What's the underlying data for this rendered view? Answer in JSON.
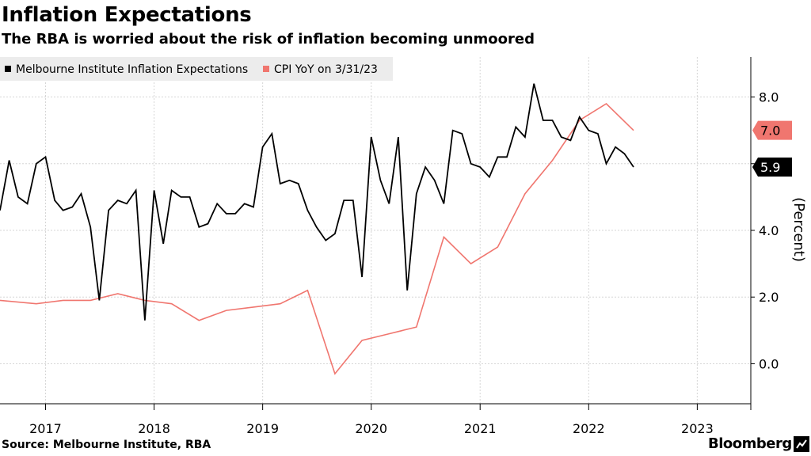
{
  "header": {
    "title": "Inflation Expectations",
    "subtitle": "The RBA is worried about the risk of inflation becoming unmoored"
  },
  "footer": {
    "source": "Source: Melbourne Institute, RBA",
    "brand": "Bloomberg"
  },
  "chart_data": {
    "type": "line",
    "ylabel": "(Percent)",
    "ylim": [
      -1.2,
      9.2
    ],
    "xlim": [
      "2016-08-01",
      "2023-06-30"
    ],
    "yticks": [
      0.0,
      2.0,
      4.0,
      6.0,
      8.0
    ],
    "ytick_labels": [
      "0.0",
      "2.0",
      "4.0",
      "",
      "8.0"
    ],
    "xticks": [
      "2017-01-01",
      "2018-01-01",
      "2019-01-01",
      "2020-01-01",
      "2021-01-01",
      "2022-01-01",
      "2023-01-01"
    ],
    "xtick_labels": [
      "2017",
      "2018",
      "2019",
      "2020",
      "2021",
      "2022",
      "2023"
    ],
    "grid": true,
    "legend": "top-left",
    "series": [
      {
        "name": "Melbourne Institute Inflation Expectations",
        "color": "#000000",
        "end_label": "5.9",
        "points": [
          [
            "2016-08",
            4.6
          ],
          [
            "2016-09",
            6.1
          ],
          [
            "2016-10",
            5.0
          ],
          [
            "2016-11",
            4.8
          ],
          [
            "2016-12",
            6.0
          ],
          [
            "2017-01",
            6.2
          ],
          [
            "2017-02",
            4.9
          ],
          [
            "2017-03",
            4.6
          ],
          [
            "2017-04",
            4.7
          ],
          [
            "2017-05",
            5.1
          ],
          [
            "2017-06",
            4.1
          ],
          [
            "2017-07",
            1.9
          ],
          [
            "2017-08",
            4.6
          ],
          [
            "2017-09",
            4.9
          ],
          [
            "2017-10",
            4.8
          ],
          [
            "2017-11",
            5.2
          ],
          [
            "2017-12",
            1.3
          ],
          [
            "2018-01",
            5.2
          ],
          [
            "2018-02",
            3.6
          ],
          [
            "2018-03",
            5.2
          ],
          [
            "2018-04",
            5.0
          ],
          [
            "2018-05",
            5.0
          ],
          [
            "2018-06",
            4.1
          ],
          [
            "2018-07",
            4.2
          ],
          [
            "2018-08",
            4.8
          ],
          [
            "2018-09",
            4.5
          ],
          [
            "2018-10",
            4.5
          ],
          [
            "2018-11",
            4.8
          ],
          [
            "2018-12",
            4.7
          ],
          [
            "2019-01",
            6.5
          ],
          [
            "2019-02",
            6.9
          ],
          [
            "2019-03",
            5.4
          ],
          [
            "2019-04",
            5.5
          ],
          [
            "2019-05",
            5.4
          ],
          [
            "2019-06",
            4.6
          ],
          [
            "2019-07",
            4.1
          ],
          [
            "2019-08",
            3.7
          ],
          [
            "2019-09",
            3.9
          ],
          [
            "2019-10",
            4.9
          ],
          [
            "2019-11",
            4.9
          ],
          [
            "2019-12",
            2.6
          ],
          [
            "2020-01",
            6.8
          ],
          [
            "2020-02",
            5.5
          ],
          [
            "2020-03",
            4.8
          ],
          [
            "2020-04",
            6.8
          ],
          [
            "2020-05",
            2.2
          ],
          [
            "2020-06",
            5.1
          ],
          [
            "2020-07",
            5.9
          ],
          [
            "2020-08",
            5.5
          ],
          [
            "2020-09",
            4.8
          ],
          [
            "2020-10",
            7.0
          ],
          [
            "2020-11",
            6.9
          ],
          [
            "2020-12",
            6.0
          ],
          [
            "2021-01",
            5.9
          ],
          [
            "2021-02",
            5.6
          ],
          [
            "2021-03",
            6.2
          ],
          [
            "2021-04",
            6.2
          ],
          [
            "2021-05",
            7.1
          ],
          [
            "2021-06",
            6.8
          ],
          [
            "2021-07",
            8.4
          ],
          [
            "2021-08",
            7.3
          ],
          [
            "2021-09",
            7.3
          ],
          [
            "2021-10",
            6.8
          ],
          [
            "2021-11",
            6.7
          ],
          [
            "2021-12",
            7.4
          ],
          [
            "2022-01",
            7.0
          ],
          [
            "2022-02",
            6.9
          ],
          [
            "2022-03",
            6.0
          ],
          [
            "2022-04",
            6.5
          ],
          [
            "2022-05",
            6.3
          ],
          [
            "2022-06",
            5.9
          ]
        ]
      },
      {
        "name": "CPI YoY on 3/31/23",
        "color": "#f0766f",
        "end_label": "7.0",
        "points": [
          [
            "2016-08-01",
            1.9
          ],
          [
            "2016-12-01",
            1.8
          ],
          [
            "2017-03-01",
            1.9
          ],
          [
            "2017-06-01",
            1.9
          ],
          [
            "2017-09-01",
            2.1
          ],
          [
            "2017-12-01",
            1.9
          ],
          [
            "2018-03-01",
            1.8
          ],
          [
            "2018-06-01",
            1.3
          ],
          [
            "2018-09-01",
            1.6
          ],
          [
            "2018-12-01",
            1.7
          ],
          [
            "2019-03-01",
            1.8
          ],
          [
            "2019-06-01",
            2.2
          ],
          [
            "2019-09-01",
            -0.3
          ],
          [
            "2019-12-01",
            0.7
          ],
          [
            "2020-03-01",
            0.9
          ],
          [
            "2020-06-01",
            1.1
          ],
          [
            "2020-09-01",
            3.8
          ],
          [
            "2020-12-01",
            3.0
          ],
          [
            "2021-03-01",
            3.5
          ],
          [
            "2021-06-01",
            5.1
          ],
          [
            "2021-09-01",
            6.1
          ],
          [
            "2021-12-01",
            7.3
          ],
          [
            "2022-03-01",
            7.8
          ],
          [
            "2022-06-01",
            7.0
          ]
        ]
      }
    ]
  }
}
